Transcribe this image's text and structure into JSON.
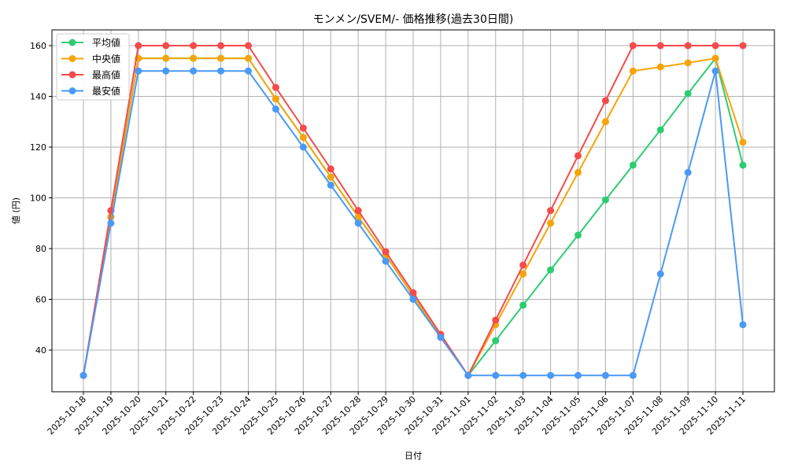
{
  "chart_data": {
    "type": "line",
    "title": "モンメン/SVEM/- 価格推移(過去30日間)",
    "xlabel": "日付",
    "ylabel": "値 (円)",
    "ylim": [
      24,
      166
    ],
    "yticks": [
      40,
      60,
      80,
      100,
      120,
      140,
      160
    ],
    "grid": true,
    "legend_position": "upper left",
    "categories": [
      "2025-10-18",
      "2025-10-19",
      "2025-10-20",
      "2025-10-21",
      "2025-10-22",
      "2025-10-23",
      "2025-10-24",
      "2025-10-25",
      "2025-10-26",
      "2025-10-27",
      "2025-10-28",
      "2025-10-29",
      "2025-10-30",
      "2025-10-31",
      "2025-11-01",
      "2025-11-02",
      "2025-11-03",
      "2025-11-04",
      "2025-11-05",
      "2025-11-06",
      "2025-11-07",
      "2025-11-08",
      "2025-11-09",
      "2025-11-10",
      "2025-11-11"
    ],
    "series": [
      {
        "name": "平均値",
        "color": "#2ecc71",
        "values": [
          30,
          92.5,
          155,
          155,
          155,
          155,
          155,
          139,
          123.8,
          108.2,
          92.5,
          77.5,
          61.3,
          45.6,
          30,
          43.7,
          57.7,
          71.6,
          85.3,
          99.2,
          112.9,
          126.8,
          141.1,
          155,
          112.9
        ]
      },
      {
        "name": "中央値",
        "color": "#f5a50a",
        "values": [
          30,
          92.5,
          155,
          155,
          155,
          155,
          155,
          139,
          123.8,
          108.2,
          92.5,
          77.5,
          61.3,
          45.6,
          30,
          50,
          70,
          90,
          110,
          130,
          150,
          151.6,
          153.2,
          155,
          121.9
        ]
      },
      {
        "name": "最高値",
        "color": "#f44b4b",
        "values": [
          30,
          95,
          160,
          160,
          160,
          160,
          160,
          143.5,
          127.5,
          111.4,
          95,
          78.8,
          62.6,
          46.2,
          30,
          51.8,
          73.5,
          95,
          116.6,
          138.3,
          160,
          160,
          160,
          160,
          160
        ]
      },
      {
        "name": "最安値",
        "color": "#4a9af5",
        "values": [
          30,
          90,
          150,
          150,
          150,
          150,
          150,
          135,
          120,
          105,
          90,
          75,
          60,
          45,
          30,
          30,
          30,
          30,
          30,
          30,
          30,
          70,
          110,
          150,
          50
        ]
      }
    ]
  }
}
